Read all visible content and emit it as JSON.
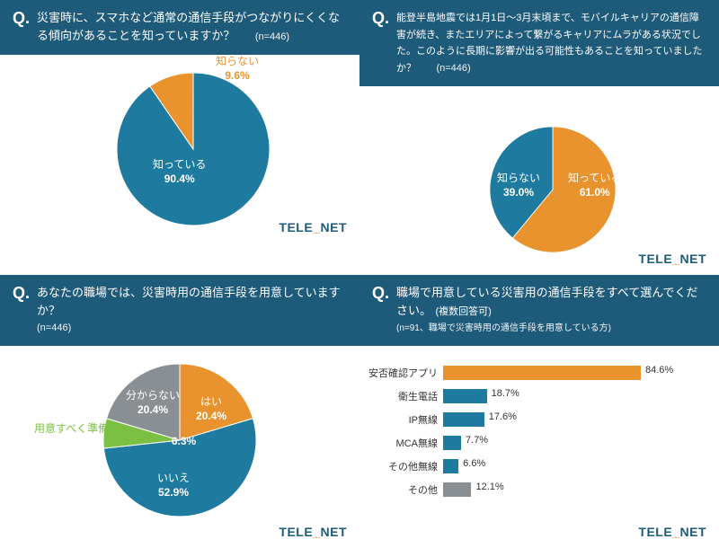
{
  "brand": {
    "part1": "TELE",
    "part2": "NET"
  },
  "colors": {
    "teal": "#1e7a9e",
    "teal_dark": "#1e5a7a",
    "orange": "#e8932e",
    "gray": "#8a8f93",
    "green": "#7bc043"
  },
  "q1": {
    "q_mark": "Q.",
    "text": "災害時に、スマホなど通常の通信手段がつながりにくくなる傾向があることを知っていますか？",
    "sub": "(n=446)",
    "slices": [
      {
        "label": "知っている",
        "value": 90.4,
        "pct": "90.4%",
        "color": "#1e7a9e"
      },
      {
        "label": "知らない",
        "value": 9.6,
        "pct": "9.6%",
        "color": "#e8932e"
      }
    ]
  },
  "q2": {
    "q_mark": "Q.",
    "text": "能登半島地震では1月1日～3月末頃まで、モバイルキャリアの通信障害が続き、またエリアによって繋がるキャリアにムラがある状況でした。このように長期に影響が出る可能性もあることを知っていましたか？",
    "sub": "(n=446)",
    "slices": [
      {
        "label": "知っている",
        "value": 61.0,
        "pct": "61.0%",
        "color": "#e8932e"
      },
      {
        "label": "知らない",
        "value": 39.0,
        "pct": "39.0%",
        "color": "#1e7a9e"
      }
    ]
  },
  "q3": {
    "q_mark": "Q.",
    "text": "あなたの職場では、災害時用の通信手段を用意していますか？",
    "sub": "(n=446)",
    "slices": [
      {
        "label": "はい",
        "value": 20.4,
        "pct": "20.4%",
        "color": "#e8932e"
      },
      {
        "label": "いいえ",
        "value": 52.9,
        "pct": "52.9%",
        "color": "#1e7a9e"
      },
      {
        "label": "用意すべく準備中",
        "value": 6.3,
        "pct": "6.3%",
        "color": "#7bc043"
      },
      {
        "label": "分からない",
        "value": 20.4,
        "pct": "20.4%",
        "color": "#8a8f93"
      }
    ]
  },
  "q4": {
    "q_mark": "Q.",
    "text": "職場で用意している災害用の通信手段をすべて選んでください。",
    "sub_inline": "(複数回答可)",
    "sub": "(n=91、職場で災害時用の通信手段を用意している方)",
    "max": 100,
    "bars": [
      {
        "label": "安否確認アプリ",
        "value": 84.6,
        "pct": "84.6%",
        "color": "#e8932e"
      },
      {
        "label": "衛生電話",
        "value": 18.7,
        "pct": "18.7%",
        "color": "#1e7a9e"
      },
      {
        "label": "IP無線",
        "value": 17.6,
        "pct": "17.6%",
        "color": "#1e7a9e"
      },
      {
        "label": "MCA無線",
        "value": 7.7,
        "pct": "7.7%",
        "color": "#1e7a9e"
      },
      {
        "label": "その他無線",
        "value": 6.6,
        "pct": "6.6%",
        "color": "#1e7a9e"
      },
      {
        "label": "その他",
        "value": 12.1,
        "pct": "12.1%",
        "color": "#8a8f93"
      }
    ]
  }
}
